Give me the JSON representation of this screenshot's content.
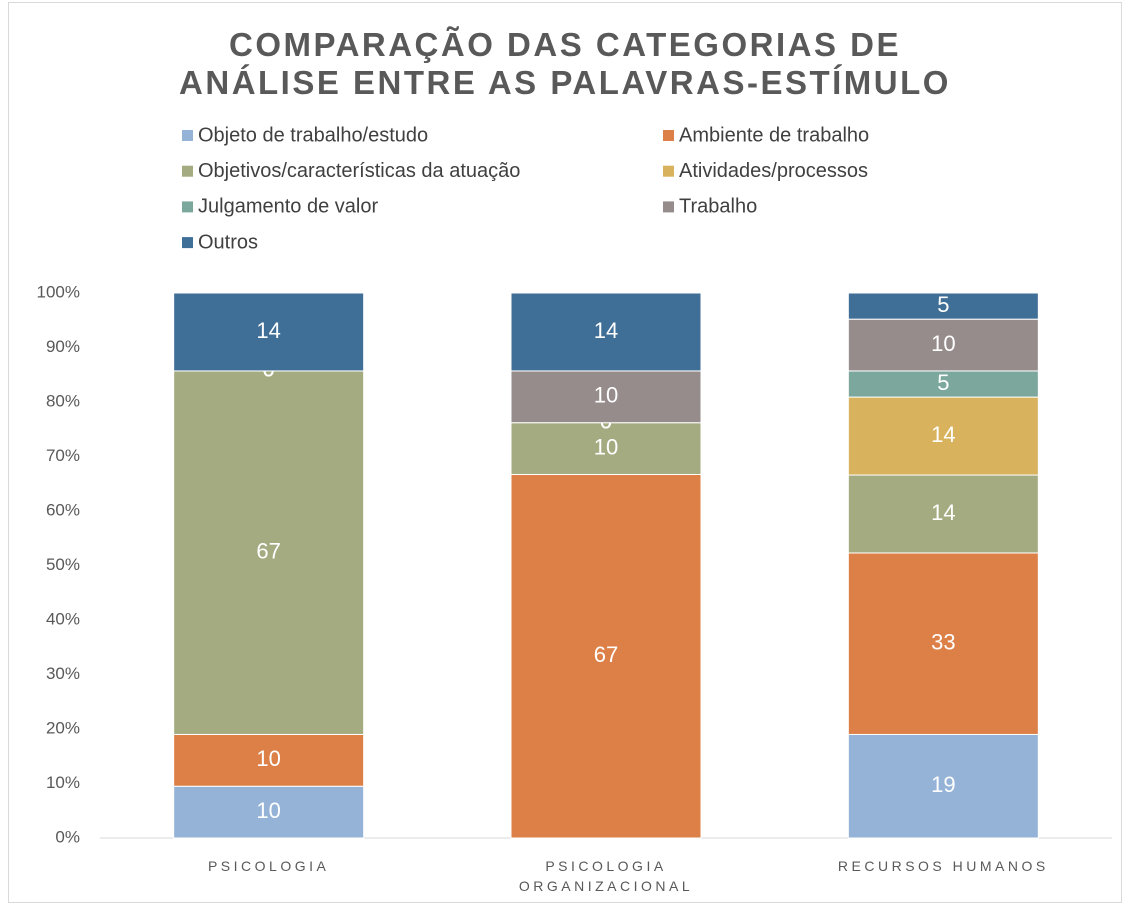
{
  "chart_data": {
    "type": "stacked_bar_100",
    "title": "COMPARAÇÃO DAS CATEGORIAS DE ANÁLISE ENTRE AS PALAVRAS-ESTÍMULO",
    "categories": [
      "PSICOLOGIA",
      "PSICOLOGIA ORGANIZACIONAL",
      "RECURSOS HUMANOS"
    ],
    "series": [
      {
        "name": "Objeto de trabalho/estudo",
        "color": "#95b3d7",
        "values": [
          9.5,
          0,
          19.0
        ],
        "value_labels": [
          "10",
          "0",
          "19"
        ]
      },
      {
        "name": "Ambiente de trabalho",
        "color": "#dd8047",
        "values": [
          9.5,
          66.7,
          33.3
        ],
        "value_labels": [
          "10",
          "67",
          "33"
        ]
      },
      {
        "name": "Objetivos/características da atuação",
        "color": "#a5ab81",
        "values": [
          66.7,
          9.5,
          14.3
        ],
        "value_labels": [
          "67",
          "10",
          "14"
        ]
      },
      {
        "name": "Atividades/processos",
        "color": "#d8b25c",
        "values": [
          0,
          0,
          14.3
        ],
        "value_labels": [
          "0",
          "0",
          "14"
        ]
      },
      {
        "name": "Julgamento de valor",
        "color": "#7ba79d",
        "values": [
          0,
          0,
          4.8
        ],
        "value_labels": [
          "0",
          "0",
          "5"
        ]
      },
      {
        "name": "Trabalho",
        "color": "#968c8c",
        "values": [
          0,
          9.5,
          9.5
        ],
        "value_labels": [
          "0",
          "10",
          "10"
        ]
      },
      {
        "name": "Outros",
        "color": "#3f6e96",
        "values": [
          14.3,
          14.3,
          4.8
        ],
        "value_labels": [
          "14",
          "14",
          "5"
        ]
      }
    ],
    "ylim": [
      0,
      100
    ],
    "yticks": [
      {
        "value": 0,
        "label": "0%"
      },
      {
        "value": 10,
        "label": "10%"
      },
      {
        "value": 20,
        "label": "20%"
      },
      {
        "value": 30,
        "label": "30%"
      },
      {
        "value": 40,
        "label": "40%"
      },
      {
        "value": 50,
        "label": "50%"
      },
      {
        "value": 60,
        "label": "60%"
      },
      {
        "value": 70,
        "label": "70%"
      },
      {
        "value": 80,
        "label": "80%"
      },
      {
        "value": 90,
        "label": "90%"
      },
      {
        "value": 100,
        "label": "100%"
      }
    ],
    "grid": false
  }
}
